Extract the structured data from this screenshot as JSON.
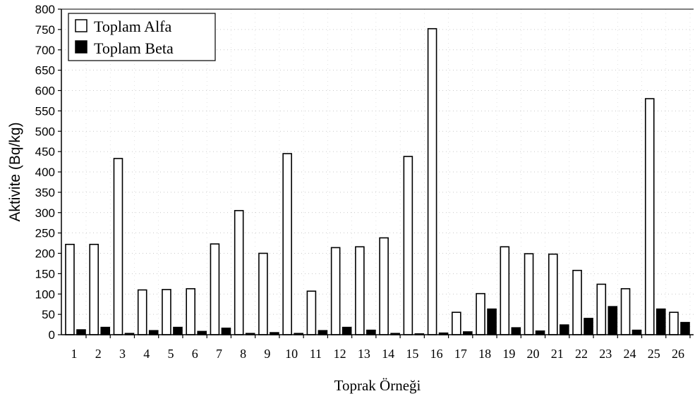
{
  "chart_data": {
    "type": "bar",
    "title": "",
    "xlabel": "Toprak Örneği",
    "ylabel": "Aktivite (Bq/kg)",
    "ylim": [
      0,
      800
    ],
    "ytick_step": 50,
    "grid": "dotted-major",
    "legend_position": "top-left",
    "categories": [
      "1",
      "2",
      "3",
      "4",
      "5",
      "6",
      "7",
      "8",
      "9",
      "10",
      "11",
      "12",
      "13",
      "14",
      "15",
      "16",
      "17",
      "18",
      "19",
      "20",
      "21",
      "22",
      "23",
      "24",
      "25",
      "26"
    ],
    "series": [
      {
        "name": "Toplam Alfa",
        "color": "#ffffff",
        "edge": "#000000",
        "values": [
          222,
          222,
          433,
          110,
          111,
          113,
          223,
          305,
          200,
          445,
          107,
          214,
          216,
          238,
          438,
          752,
          55,
          101,
          216,
          199,
          198,
          158,
          124,
          113,
          580,
          55
        ]
      },
      {
        "name": "Toplam Beta",
        "color": "#000000",
        "edge": "#000000",
        "values": [
          12,
          18,
          3,
          10,
          18,
          8,
          16,
          3,
          5,
          3,
          10,
          18,
          11,
          3,
          2,
          4,
          7,
          63,
          17,
          9,
          24,
          40,
          69,
          11,
          63,
          30
        ]
      }
    ]
  }
}
